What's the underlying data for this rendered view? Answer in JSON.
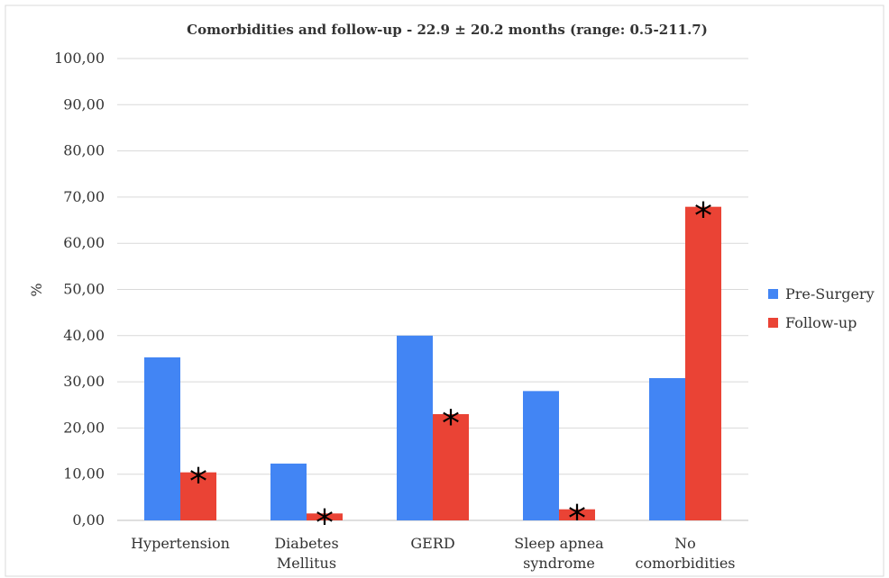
{
  "chart_data": {
    "type": "bar",
    "title": "Comorbidities and follow-up - 22.9 ± 20.2 months (range: 0.5-211.7)",
    "xlabel": "",
    "ylabel": "%",
    "ylim": [
      0,
      100
    ],
    "yticks": [
      "0,00",
      "10,00",
      "20,00",
      "30,00",
      "40,00",
      "50,00",
      "60,00",
      "70,00",
      "80,00",
      "90,00",
      "100,00"
    ],
    "categories": [
      [
        "Hypertension"
      ],
      [
        "Diabetes",
        "Mellitus"
      ],
      [
        "GERD"
      ],
      [
        "Sleep apnea",
        "syndrome"
      ],
      [
        "No",
        "comorbidities"
      ]
    ],
    "series": [
      {
        "name": "Pre-Surgery",
        "color": "#4285f4",
        "values": [
          35.3,
          12.3,
          40.0,
          28.0,
          30.8
        ]
      },
      {
        "name": "Follow-up",
        "color": "#ea4335",
        "values": [
          10.4,
          1.5,
          23.0,
          2.4,
          67.9
        ]
      }
    ],
    "annotations": [
      {
        "category": 0,
        "series": 1,
        "text": "*"
      },
      {
        "category": 1,
        "series": 1,
        "text": "*"
      },
      {
        "category": 2,
        "series": 1,
        "text": "*"
      },
      {
        "category": 3,
        "series": 1,
        "text": "*"
      },
      {
        "category": 4,
        "series": 1,
        "text": "*"
      }
    ],
    "grid": true,
    "legend_position": "right"
  }
}
